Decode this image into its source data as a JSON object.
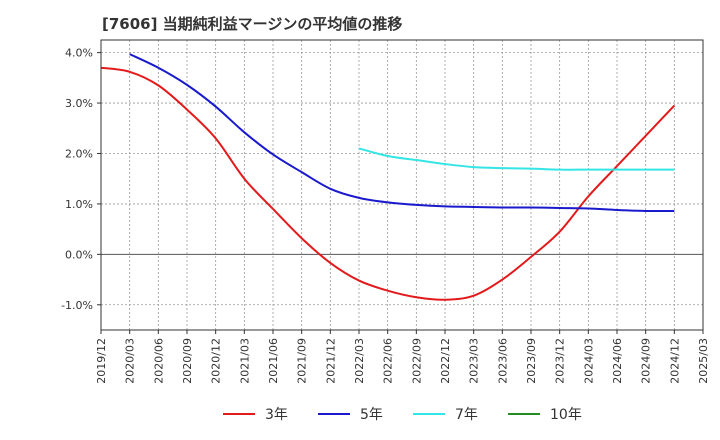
{
  "chart_data": {
    "type": "line",
    "title": "[7606]  当期純利益マージンの平均値の推移",
    "xlabel": "",
    "ylabel": "",
    "x": [
      "2019/12",
      "2020/03",
      "2020/06",
      "2020/09",
      "2020/12",
      "2021/03",
      "2021/06",
      "2021/09",
      "2021/12",
      "2022/03",
      "2022/06",
      "2022/09",
      "2022/12",
      "2023/03",
      "2023/06",
      "2023/09",
      "2023/12",
      "2024/03",
      "2024/06",
      "2024/09",
      "2024/12",
      "2025/03"
    ],
    "ylim": [
      -1.5,
      4.25
    ],
    "yticks": [
      -1.0,
      0.0,
      1.0,
      2.0,
      3.0,
      4.0
    ],
    "ytick_labels": [
      "-1.0%",
      "0.0%",
      "1.0%",
      "2.0%",
      "3.0%",
      "4.0%"
    ],
    "grid": true,
    "legend_position": "bottom",
    "series": [
      {
        "name": "3年",
        "color": "#e31a1c",
        "values": [
          3.7,
          3.62,
          3.35,
          2.87,
          2.3,
          1.5,
          0.9,
          0.32,
          -0.17,
          -0.52,
          -0.72,
          -0.85,
          -0.9,
          -0.82,
          -0.5,
          -0.05,
          0.45,
          1.15,
          1.75,
          2.35,
          2.95,
          null
        ]
      },
      {
        "name": "5年",
        "color": "#1a1acd",
        "values": [
          null,
          3.97,
          3.7,
          3.36,
          2.93,
          2.42,
          1.98,
          1.63,
          1.3,
          1.12,
          1.03,
          0.98,
          0.95,
          0.94,
          0.93,
          0.93,
          0.92,
          0.91,
          0.88,
          0.86,
          0.86,
          null
        ]
      },
      {
        "name": "7年",
        "color": "#33e5e5",
        "values": [
          null,
          null,
          null,
          null,
          null,
          null,
          null,
          null,
          null,
          2.1,
          1.95,
          1.87,
          1.79,
          1.73,
          1.71,
          1.7,
          1.68,
          1.68,
          1.68,
          1.68,
          1.68,
          null
        ]
      },
      {
        "name": "10年",
        "color": "#228b22",
        "values": [
          null,
          null,
          null,
          null,
          null,
          null,
          null,
          null,
          null,
          null,
          null,
          null,
          null,
          null,
          null,
          null,
          null,
          null,
          null,
          null,
          null,
          null
        ]
      }
    ]
  }
}
